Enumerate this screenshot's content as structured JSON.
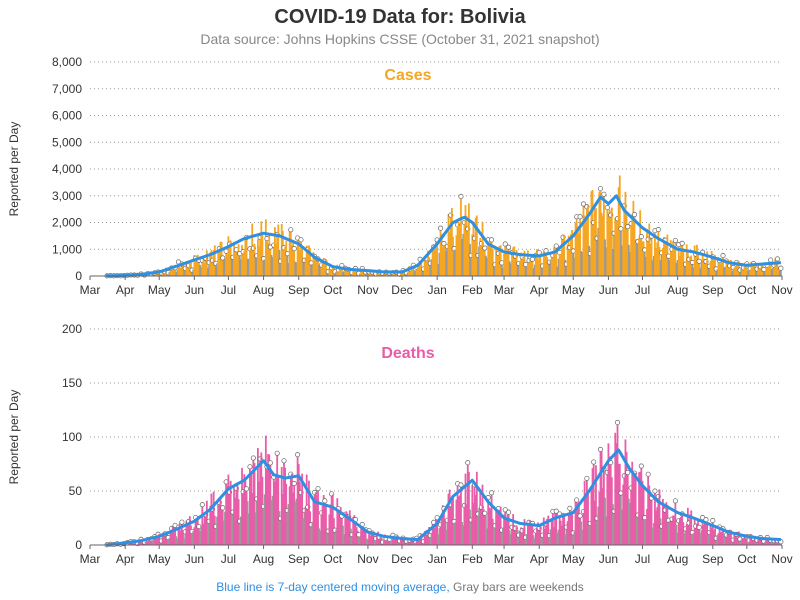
{
  "title": "COVID-19 Data for: Bolivia",
  "subtitle": "Data source: Johns Hopkins CSSE (October 31, 2021 snapshot)",
  "footer": {
    "blue_text": "Blue line is 7-day centered moving average,",
    "gray_text": "Gray bars are weekends"
  },
  "colors": {
    "cases_bar": "#f5a623",
    "cases_title": "#f5a623",
    "deaths_bar": "#e85ca8",
    "deaths_title": "#e85ca8",
    "moving_average": "#2f8fe0",
    "weekend_bar": "#999999",
    "grid": "#999999"
  },
  "chart_data": [
    {
      "type": "bar",
      "title": "Cases",
      "ylabel": "Reported per Day",
      "ylim": [
        0,
        8000
      ],
      "yticks": [
        "0",
        "1,000",
        "2,000",
        "3,000",
        "4,000",
        "5,000",
        "6,000",
        "7,000",
        "8,000"
      ],
      "ytick_values": [
        0,
        1000,
        2000,
        3000,
        4000,
        5000,
        6000,
        7000,
        8000
      ],
      "xticks": [
        "Mar",
        "Apr",
        "May",
        "Jun",
        "Jul",
        "Aug",
        "Sep",
        "Oct",
        "Nov",
        "Dec",
        "Jan",
        "Feb",
        "Mar",
        "Apr",
        "May",
        "Jun",
        "Jul",
        "Aug",
        "Sep",
        "Oct",
        "Nov"
      ],
      "grid": "horizontal dotted",
      "series": [
        {
          "name": "Cases",
          "x": [
            "2020-03-15",
            "2020-04-01",
            "2020-04-15",
            "2020-05-01",
            "2020-05-15",
            "2020-06-01",
            "2020-06-15",
            "2020-07-01",
            "2020-07-15",
            "2020-08-01",
            "2020-08-15",
            "2020-09-01",
            "2020-09-15",
            "2020-10-01",
            "2020-10-15",
            "2020-11-01",
            "2020-11-15",
            "2020-12-01",
            "2020-12-15",
            "2021-01-01",
            "2021-01-15",
            "2021-01-25",
            "2021-02-01",
            "2021-02-15",
            "2021-03-01",
            "2021-03-15",
            "2021-04-01",
            "2021-04-15",
            "2021-05-01",
            "2021-05-15",
            "2021-05-25",
            "2021-06-01",
            "2021-06-08",
            "2021-06-15",
            "2021-07-01",
            "2021-07-15",
            "2021-08-01",
            "2021-08-15",
            "2021-09-01",
            "2021-09-15",
            "2021-10-01",
            "2021-10-15",
            "2021-10-31"
          ],
          "values": [
            5,
            20,
            60,
            150,
            350,
            600,
            800,
            1100,
            1400,
            1600,
            1500,
            1200,
            700,
            350,
            250,
            200,
            150,
            150,
            400,
            1200,
            2000,
            2400,
            2100,
            1200,
            900,
            800,
            750,
            900,
            1500,
            2300,
            3000,
            2700,
            3000,
            2500,
            1800,
            1400,
            1000,
            900,
            700,
            500,
            400,
            450,
            500
          ]
        },
        {
          "name": "7-day centered moving average",
          "x": [
            "2020-03-15",
            "2020-04-01",
            "2020-04-15",
            "2020-05-01",
            "2020-05-15",
            "2020-06-01",
            "2020-06-15",
            "2020-07-01",
            "2020-07-15",
            "2020-08-01",
            "2020-08-15",
            "2020-09-01",
            "2020-09-15",
            "2020-10-01",
            "2020-10-15",
            "2020-11-01",
            "2020-11-15",
            "2020-12-01",
            "2020-12-15",
            "2021-01-01",
            "2021-01-15",
            "2021-01-25",
            "2021-02-01",
            "2021-02-15",
            "2021-03-01",
            "2021-03-15",
            "2021-04-01",
            "2021-04-15",
            "2021-05-01",
            "2021-05-15",
            "2021-05-25",
            "2021-06-01",
            "2021-06-08",
            "2021-06-15",
            "2021-07-01",
            "2021-07-15",
            "2021-08-01",
            "2021-08-15",
            "2021-09-01",
            "2021-09-15",
            "2021-10-01",
            "2021-10-15",
            "2021-10-31"
          ],
          "values": [
            5,
            20,
            60,
            150,
            350,
            600,
            800,
            1100,
            1400,
            1600,
            1500,
            1200,
            700,
            350,
            250,
            200,
            150,
            150,
            400,
            1200,
            2000,
            2200,
            2000,
            1200,
            900,
            800,
            750,
            900,
            1500,
            2300,
            2950,
            2700,
            3000,
            2450,
            1800,
            1400,
            1000,
            900,
            700,
            500,
            400,
            450,
            500
          ]
        }
      ]
    },
    {
      "type": "bar",
      "title": "Deaths",
      "ylabel": "Reported per Day",
      "ylim": [
        0,
        200
      ],
      "yticks": [
        "0",
        "50",
        "100",
        "150",
        "200"
      ],
      "ytick_values": [
        0,
        50,
        100,
        150,
        200
      ],
      "xticks": [
        "Mar",
        "Apr",
        "May",
        "Jun",
        "Jul",
        "Aug",
        "Sep",
        "Oct",
        "Nov",
        "Dec",
        "Jan",
        "Feb",
        "Mar",
        "Apr",
        "May",
        "Jun",
        "Jul",
        "Aug",
        "Sep",
        "Oct",
        "Nov"
      ],
      "grid": "horizontal dotted",
      "series": [
        {
          "name": "Deaths",
          "x": [
            "2020-03-15",
            "2020-04-01",
            "2020-04-15",
            "2020-05-01",
            "2020-05-15",
            "2020-06-01",
            "2020-06-15",
            "2020-07-01",
            "2020-07-15",
            "2020-08-01",
            "2020-08-10",
            "2020-08-20",
            "2020-09-01",
            "2020-09-15",
            "2020-10-01",
            "2020-10-15",
            "2020-11-01",
            "2020-11-15",
            "2020-12-01",
            "2020-12-15",
            "2021-01-01",
            "2021-01-15",
            "2021-02-01",
            "2021-02-15",
            "2021-03-01",
            "2021-03-15",
            "2021-04-01",
            "2021-04-15",
            "2021-05-01",
            "2021-05-15",
            "2021-06-01",
            "2021-06-10",
            "2021-06-20",
            "2021-07-01",
            "2021-07-15",
            "2021-08-01",
            "2021-08-15",
            "2021-09-01",
            "2021-09-15",
            "2021-10-01",
            "2021-10-15",
            "2021-10-31"
          ],
          "values": [
            0,
            2,
            4,
            8,
            14,
            22,
            35,
            55,
            65,
            80,
            70,
            60,
            65,
            40,
            35,
            25,
            12,
            8,
            6,
            5,
            20,
            45,
            60,
            40,
            25,
            20,
            18,
            25,
            30,
            50,
            80,
            90,
            70,
            55,
            40,
            30,
            25,
            18,
            12,
            8,
            6,
            5
          ]
        },
        {
          "name": "7-day centered moving average",
          "x": [
            "2020-03-15",
            "2020-04-01",
            "2020-04-15",
            "2020-05-01",
            "2020-05-15",
            "2020-06-01",
            "2020-06-15",
            "2020-07-01",
            "2020-07-15",
            "2020-08-01",
            "2020-08-10",
            "2020-08-20",
            "2020-09-01",
            "2020-09-15",
            "2020-10-01",
            "2020-10-15",
            "2020-11-01",
            "2020-11-15",
            "2020-12-01",
            "2020-12-15",
            "2021-01-01",
            "2021-01-15",
            "2021-02-01",
            "2021-02-15",
            "2021-03-01",
            "2021-03-15",
            "2021-04-01",
            "2021-04-15",
            "2021-05-01",
            "2021-05-15",
            "2021-06-01",
            "2021-06-10",
            "2021-06-20",
            "2021-07-01",
            "2021-07-15",
            "2021-08-01",
            "2021-08-15",
            "2021-09-01",
            "2021-09-15",
            "2021-10-01",
            "2021-10-15",
            "2021-10-31"
          ],
          "values": [
            0,
            2,
            4,
            8,
            14,
            22,
            33,
            52,
            60,
            78,
            65,
            62,
            64,
            40,
            35,
            25,
            12,
            8,
            6,
            5,
            20,
            45,
            60,
            40,
            25,
            20,
            18,
            25,
            30,
            50,
            78,
            88,
            70,
            55,
            40,
            30,
            25,
            18,
            12,
            8,
            6,
            5
          ]
        }
      ]
    }
  ]
}
